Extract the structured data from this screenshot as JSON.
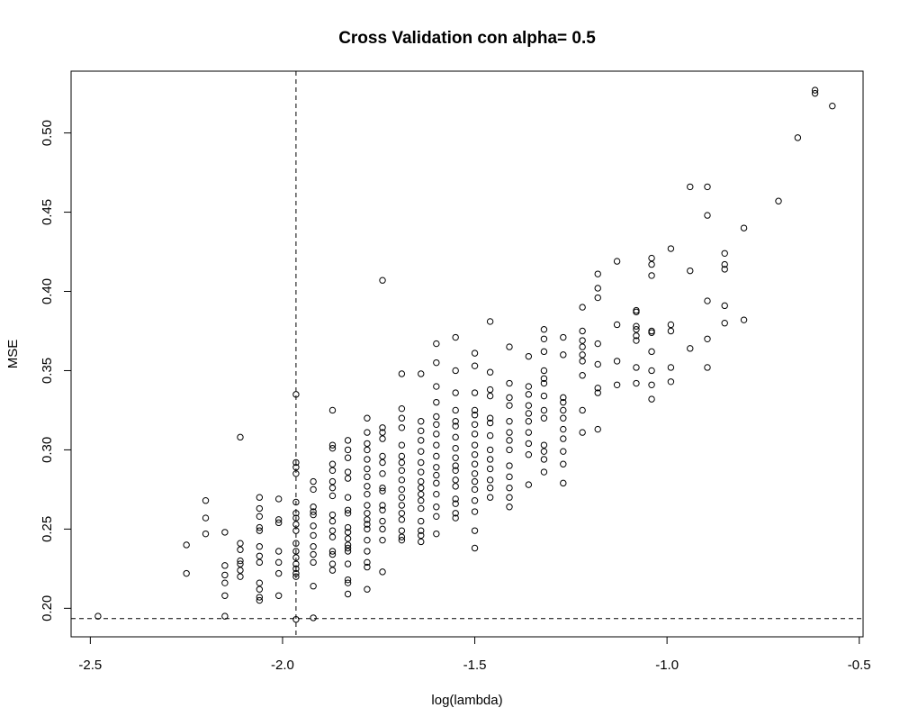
{
  "chart_data": {
    "type": "scatter",
    "title": "Cross Validation con alpha= 0.5",
    "xlabel": "log(lambda)",
    "ylabel": "MSE",
    "xlim": [
      -2.55,
      -0.49
    ],
    "ylim": [
      0.182,
      0.539
    ],
    "xticks": [
      -2.5,
      -2.0,
      -1.5,
      -1.0,
      -0.5
    ],
    "xtick_labels": [
      "-2.5",
      "-2.0",
      "-1.5",
      "-1.0",
      "-0.5"
    ],
    "yticks": [
      0.2,
      0.25,
      0.3,
      0.35,
      0.4,
      0.45,
      0.5
    ],
    "ytick_labels": [
      "0.20",
      "0.25",
      "0.30",
      "0.35",
      "0.40",
      "0.45",
      "0.50"
    ],
    "vline_x": -1.965,
    "hline_y": 0.1935,
    "grid": false,
    "marker": "open-circle",
    "points": [
      [
        -2.48,
        0.195
      ],
      [
        -2.25,
        0.24
      ],
      [
        -2.25,
        0.222
      ],
      [
        -2.2,
        0.268
      ],
      [
        -2.2,
        0.257
      ],
      [
        -2.2,
        0.247
      ],
      [
        -2.15,
        0.248
      ],
      [
        -2.15,
        0.227
      ],
      [
        -2.15,
        0.221
      ],
      [
        -2.15,
        0.216
      ],
      [
        -2.15,
        0.208
      ],
      [
        -2.15,
        0.195
      ],
      [
        -2.11,
        0.308
      ],
      [
        -2.11,
        0.241
      ],
      [
        -2.11,
        0.237
      ],
      [
        -2.11,
        0.23
      ],
      [
        -2.11,
        0.228
      ],
      [
        -2.11,
        0.224
      ],
      [
        -2.11,
        0.22
      ],
      [
        -2.06,
        0.27
      ],
      [
        -2.06,
        0.263
      ],
      [
        -2.06,
        0.258
      ],
      [
        -2.06,
        0.251
      ],
      [
        -2.06,
        0.249
      ],
      [
        -2.06,
        0.239
      ],
      [
        -2.06,
        0.233
      ],
      [
        -2.06,
        0.229
      ],
      [
        -2.06,
        0.216
      ],
      [
        -2.06,
        0.212
      ],
      [
        -2.06,
        0.207
      ],
      [
        -2.06,
        0.205
      ],
      [
        -2.01,
        0.269
      ],
      [
        -2.01,
        0.256
      ],
      [
        -2.01,
        0.254
      ],
      [
        -2.01,
        0.236
      ],
      [
        -2.01,
        0.229
      ],
      [
        -2.01,
        0.222
      ],
      [
        -2.01,
        0.208
      ],
      [
        -1.965,
        0.335
      ],
      [
        -1.965,
        0.292
      ],
      [
        -1.965,
        0.289
      ],
      [
        -1.965,
        0.285
      ],
      [
        -1.965,
        0.267
      ],
      [
        -1.965,
        0.26
      ],
      [
        -1.965,
        0.257
      ],
      [
        -1.965,
        0.253
      ],
      [
        -1.965,
        0.249
      ],
      [
        -1.965,
        0.241
      ],
      [
        -1.965,
        0.236
      ],
      [
        -1.965,
        0.232
      ],
      [
        -1.965,
        0.228
      ],
      [
        -1.965,
        0.225
      ],
      [
        -1.965,
        0.222
      ],
      [
        -1.965,
        0.22
      ],
      [
        -1.965,
        0.193
      ],
      [
        -1.92,
        0.28
      ],
      [
        -1.92,
        0.275
      ],
      [
        -1.92,
        0.264
      ],
      [
        -1.92,
        0.261
      ],
      [
        -1.92,
        0.259
      ],
      [
        -1.92,
        0.252
      ],
      [
        -1.92,
        0.246
      ],
      [
        -1.92,
        0.239
      ],
      [
        -1.92,
        0.234
      ],
      [
        -1.92,
        0.229
      ],
      [
        -1.92,
        0.214
      ],
      [
        -1.92,
        0.194
      ],
      [
        -1.87,
        0.325
      ],
      [
        -1.87,
        0.303
      ],
      [
        -1.87,
        0.301
      ],
      [
        -1.87,
        0.291
      ],
      [
        -1.87,
        0.287
      ],
      [
        -1.87,
        0.28
      ],
      [
        -1.87,
        0.276
      ],
      [
        -1.87,
        0.271
      ],
      [
        -1.87,
        0.259
      ],
      [
        -1.87,
        0.255
      ],
      [
        -1.87,
        0.249
      ],
      [
        -1.87,
        0.245
      ],
      [
        -1.87,
        0.236
      ],
      [
        -1.87,
        0.234
      ],
      [
        -1.87,
        0.228
      ],
      [
        -1.87,
        0.224
      ],
      [
        -1.83,
        0.306
      ],
      [
        -1.83,
        0.3
      ],
      [
        -1.83,
        0.295
      ],
      [
        -1.83,
        0.286
      ],
      [
        -1.83,
        0.282
      ],
      [
        -1.83,
        0.27
      ],
      [
        -1.83,
        0.262
      ],
      [
        -1.83,
        0.26
      ],
      [
        -1.83,
        0.251
      ],
      [
        -1.83,
        0.248
      ],
      [
        -1.83,
        0.244
      ],
      [
        -1.83,
        0.24
      ],
      [
        -1.83,
        0.238
      ],
      [
        -1.83,
        0.236
      ],
      [
        -1.83,
        0.228
      ],
      [
        -1.83,
        0.218
      ],
      [
        -1.83,
        0.216
      ],
      [
        -1.83,
        0.209
      ],
      [
        -1.78,
        0.32
      ],
      [
        -1.78,
        0.311
      ],
      [
        -1.78,
        0.304
      ],
      [
        -1.78,
        0.3
      ],
      [
        -1.78,
        0.294
      ],
      [
        -1.78,
        0.288
      ],
      [
        -1.78,
        0.283
      ],
      [
        -1.78,
        0.277
      ],
      [
        -1.78,
        0.272
      ],
      [
        -1.78,
        0.265
      ],
      [
        -1.78,
        0.26
      ],
      [
        -1.78,
        0.256
      ],
      [
        -1.78,
        0.253
      ],
      [
        -1.78,
        0.25
      ],
      [
        -1.78,
        0.243
      ],
      [
        -1.78,
        0.236
      ],
      [
        -1.78,
        0.229
      ],
      [
        -1.78,
        0.226
      ],
      [
        -1.78,
        0.212
      ],
      [
        -1.74,
        0.407
      ],
      [
        -1.74,
        0.314
      ],
      [
        -1.74,
        0.311
      ],
      [
        -1.74,
        0.307
      ],
      [
        -1.74,
        0.296
      ],
      [
        -1.74,
        0.292
      ],
      [
        -1.74,
        0.285
      ],
      [
        -1.74,
        0.276
      ],
      [
        -1.74,
        0.274
      ],
      [
        -1.74,
        0.265
      ],
      [
        -1.74,
        0.262
      ],
      [
        -1.74,
        0.255
      ],
      [
        -1.74,
        0.25
      ],
      [
        -1.74,
        0.243
      ],
      [
        -1.74,
        0.223
      ],
      [
        -1.69,
        0.348
      ],
      [
        -1.69,
        0.326
      ],
      [
        -1.69,
        0.32
      ],
      [
        -1.69,
        0.314
      ],
      [
        -1.69,
        0.303
      ],
      [
        -1.69,
        0.296
      ],
      [
        -1.69,
        0.292
      ],
      [
        -1.69,
        0.287
      ],
      [
        -1.69,
        0.281
      ],
      [
        -1.69,
        0.275
      ],
      [
        -1.69,
        0.27
      ],
      [
        -1.69,
        0.265
      ],
      [
        -1.69,
        0.26
      ],
      [
        -1.69,
        0.256
      ],
      [
        -1.69,
        0.249
      ],
      [
        -1.69,
        0.245
      ],
      [
        -1.69,
        0.243
      ],
      [
        -1.64,
        0.348
      ],
      [
        -1.64,
        0.318
      ],
      [
        -1.64,
        0.312
      ],
      [
        -1.64,
        0.306
      ],
      [
        -1.64,
        0.299
      ],
      [
        -1.64,
        0.292
      ],
      [
        -1.64,
        0.286
      ],
      [
        -1.64,
        0.28
      ],
      [
        -1.64,
        0.276
      ],
      [
        -1.64,
        0.272
      ],
      [
        -1.64,
        0.268
      ],
      [
        -1.64,
        0.263
      ],
      [
        -1.64,
        0.255
      ],
      [
        -1.64,
        0.249
      ],
      [
        -1.64,
        0.246
      ],
      [
        -1.64,
        0.242
      ],
      [
        -1.6,
        0.367
      ],
      [
        -1.6,
        0.355
      ],
      [
        -1.6,
        0.34
      ],
      [
        -1.6,
        0.33
      ],
      [
        -1.6,
        0.321
      ],
      [
        -1.6,
        0.316
      ],
      [
        -1.6,
        0.31
      ],
      [
        -1.6,
        0.303
      ],
      [
        -1.6,
        0.296
      ],
      [
        -1.6,
        0.289
      ],
      [
        -1.6,
        0.284
      ],
      [
        -1.6,
        0.279
      ],
      [
        -1.6,
        0.272
      ],
      [
        -1.6,
        0.264
      ],
      [
        -1.6,
        0.258
      ],
      [
        -1.6,
        0.247
      ],
      [
        -1.55,
        0.371
      ],
      [
        -1.55,
        0.35
      ],
      [
        -1.55,
        0.336
      ],
      [
        -1.55,
        0.325
      ],
      [
        -1.55,
        0.318
      ],
      [
        -1.55,
        0.315
      ],
      [
        -1.55,
        0.308
      ],
      [
        -1.55,
        0.301
      ],
      [
        -1.55,
        0.295
      ],
      [
        -1.55,
        0.29
      ],
      [
        -1.55,
        0.287
      ],
      [
        -1.55,
        0.281
      ],
      [
        -1.55,
        0.277
      ],
      [
        -1.55,
        0.269
      ],
      [
        -1.55,
        0.266
      ],
      [
        -1.55,
        0.26
      ],
      [
        -1.55,
        0.257
      ],
      [
        -1.5,
        0.361
      ],
      [
        -1.5,
        0.353
      ],
      [
        -1.5,
        0.336
      ],
      [
        -1.5,
        0.325
      ],
      [
        -1.5,
        0.322
      ],
      [
        -1.5,
        0.316
      ],
      [
        -1.5,
        0.31
      ],
      [
        -1.5,
        0.303
      ],
      [
        -1.5,
        0.297
      ],
      [
        -1.5,
        0.291
      ],
      [
        -1.5,
        0.285
      ],
      [
        -1.5,
        0.28
      ],
      [
        -1.5,
        0.275
      ],
      [
        -1.5,
        0.268
      ],
      [
        -1.5,
        0.261
      ],
      [
        -1.5,
        0.249
      ],
      [
        -1.5,
        0.238
      ],
      [
        -1.46,
        0.381
      ],
      [
        -1.46,
        0.349
      ],
      [
        -1.46,
        0.338
      ],
      [
        -1.46,
        0.334
      ],
      [
        -1.46,
        0.32
      ],
      [
        -1.46,
        0.317
      ],
      [
        -1.46,
        0.309
      ],
      [
        -1.46,
        0.3
      ],
      [
        -1.46,
        0.294
      ],
      [
        -1.46,
        0.288
      ],
      [
        -1.46,
        0.281
      ],
      [
        -1.46,
        0.276
      ],
      [
        -1.46,
        0.27
      ],
      [
        -1.41,
        0.365
      ],
      [
        -1.41,
        0.342
      ],
      [
        -1.41,
        0.333
      ],
      [
        -1.41,
        0.328
      ],
      [
        -1.41,
        0.318
      ],
      [
        -1.41,
        0.311
      ],
      [
        -1.41,
        0.306
      ],
      [
        -1.41,
        0.3
      ],
      [
        -1.41,
        0.29
      ],
      [
        -1.41,
        0.283
      ],
      [
        -1.41,
        0.276
      ],
      [
        -1.41,
        0.27
      ],
      [
        -1.41,
        0.264
      ],
      [
        -1.36,
        0.359
      ],
      [
        -1.36,
        0.34
      ],
      [
        -1.36,
        0.335
      ],
      [
        -1.36,
        0.328
      ],
      [
        -1.36,
        0.323
      ],
      [
        -1.36,
        0.318
      ],
      [
        -1.36,
        0.311
      ],
      [
        -1.36,
        0.304
      ],
      [
        -1.36,
        0.297
      ],
      [
        -1.36,
        0.278
      ],
      [
        -1.32,
        0.376
      ],
      [
        -1.32,
        0.37
      ],
      [
        -1.32,
        0.362
      ],
      [
        -1.32,
        0.35
      ],
      [
        -1.32,
        0.345
      ],
      [
        -1.32,
        0.342
      ],
      [
        -1.32,
        0.334
      ],
      [
        -1.32,
        0.325
      ],
      [
        -1.32,
        0.32
      ],
      [
        -1.32,
        0.303
      ],
      [
        -1.32,
        0.299
      ],
      [
        -1.32,
        0.294
      ],
      [
        -1.32,
        0.286
      ],
      [
        -1.27,
        0.371
      ],
      [
        -1.27,
        0.36
      ],
      [
        -1.27,
        0.333
      ],
      [
        -1.27,
        0.33
      ],
      [
        -1.27,
        0.325
      ],
      [
        -1.27,
        0.32
      ],
      [
        -1.27,
        0.313
      ],
      [
        -1.27,
        0.307
      ],
      [
        -1.27,
        0.299
      ],
      [
        -1.27,
        0.291
      ],
      [
        -1.27,
        0.279
      ],
      [
        -1.22,
        0.39
      ],
      [
        -1.22,
        0.375
      ],
      [
        -1.22,
        0.369
      ],
      [
        -1.22,
        0.365
      ],
      [
        -1.22,
        0.36
      ],
      [
        -1.22,
        0.356
      ],
      [
        -1.22,
        0.347
      ],
      [
        -1.22,
        0.325
      ],
      [
        -1.22,
        0.311
      ],
      [
        -1.18,
        0.411
      ],
      [
        -1.18,
        0.402
      ],
      [
        -1.18,
        0.396
      ],
      [
        -1.18,
        0.367
      ],
      [
        -1.18,
        0.354
      ],
      [
        -1.18,
        0.339
      ],
      [
        -1.18,
        0.336
      ],
      [
        -1.18,
        0.313
      ],
      [
        -1.13,
        0.419
      ],
      [
        -1.13,
        0.379
      ],
      [
        -1.13,
        0.356
      ],
      [
        -1.13,
        0.341
      ],
      [
        -1.08,
        0.388
      ],
      [
        -1.08,
        0.387
      ],
      [
        -1.08,
        0.378
      ],
      [
        -1.08,
        0.376
      ],
      [
        -1.08,
        0.372
      ],
      [
        -1.08,
        0.369
      ],
      [
        -1.08,
        0.352
      ],
      [
        -1.08,
        0.342
      ],
      [
        -1.04,
        0.421
      ],
      [
        -1.04,
        0.417
      ],
      [
        -1.04,
        0.41
      ],
      [
        -1.04,
        0.375
      ],
      [
        -1.04,
        0.374
      ],
      [
        -1.04,
        0.362
      ],
      [
        -1.04,
        0.35
      ],
      [
        -1.04,
        0.341
      ],
      [
        -1.04,
        0.332
      ],
      [
        -0.99,
        0.427
      ],
      [
        -0.99,
        0.379
      ],
      [
        -0.99,
        0.375
      ],
      [
        -0.99,
        0.352
      ],
      [
        -0.99,
        0.343
      ],
      [
        -0.94,
        0.466
      ],
      [
        -0.94,
        0.413
      ],
      [
        -0.94,
        0.364
      ],
      [
        -0.895,
        0.466
      ],
      [
        -0.895,
        0.448
      ],
      [
        -0.895,
        0.394
      ],
      [
        -0.895,
        0.37
      ],
      [
        -0.895,
        0.352
      ],
      [
        -0.85,
        0.424
      ],
      [
        -0.85,
        0.417
      ],
      [
        -0.85,
        0.414
      ],
      [
        -0.85,
        0.391
      ],
      [
        -0.85,
        0.38
      ],
      [
        -0.8,
        0.44
      ],
      [
        -0.8,
        0.382
      ],
      [
        -0.71,
        0.457
      ],
      [
        -0.66,
        0.497
      ],
      [
        -0.615,
        0.527
      ],
      [
        -0.615,
        0.525
      ],
      [
        -0.57,
        0.517
      ]
    ]
  }
}
